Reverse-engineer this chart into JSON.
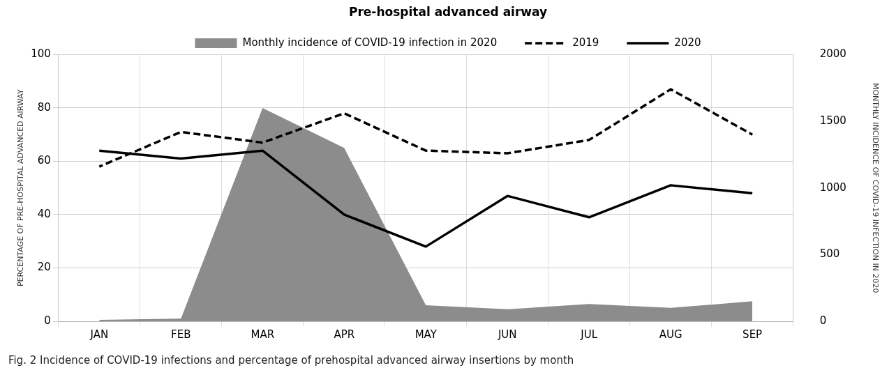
{
  "chart_data": {
    "type": "line",
    "title": "Pre-hospital advanced airway",
    "categories": [
      "JAN",
      "FEB",
      "MAR",
      "APR",
      "MAY",
      "JUN",
      "JUL",
      "AUG",
      "SEP"
    ],
    "series": [
      {
        "name": "Monthly incidence of COVID-19 infection in 2020",
        "type": "area",
        "axis": "y2",
        "color": "#8c8c8c",
        "values": [
          10,
          20,
          1600,
          1300,
          120,
          90,
          130,
          100,
          150
        ]
      },
      {
        "name": "2019",
        "type": "line",
        "line_style": "dashed",
        "color": "#000000",
        "values": [
          58,
          71,
          67,
          78,
          64,
          63,
          68,
          87,
          70
        ]
      },
      {
        "name": "2020",
        "type": "line",
        "line_style": "solid",
        "color": "#000000",
        "values": [
          64,
          61,
          64,
          40,
          28,
          47,
          39,
          51,
          48
        ]
      }
    ],
    "ylabel": "PERCENTAGE OF PRE-HOSPITAL ADVANCED AIRWAY",
    "y2label": "MONTHLY INCIDENCE OF COVID-19 INFECTION IN 2020",
    "ylim": [
      0,
      100
    ],
    "yticks": [
      0,
      20,
      40,
      60,
      80,
      100
    ],
    "y2lim": [
      0,
      2000
    ],
    "y2ticks": [
      0,
      500,
      1000,
      1500,
      2000
    ],
    "grid": true,
    "legend": "top",
    "marker": "none",
    "annotations": [
      "Fig. 2  Incidence of COVID-19 infections and percentage of prehospital advanced airway insertions by month"
    ]
  }
}
